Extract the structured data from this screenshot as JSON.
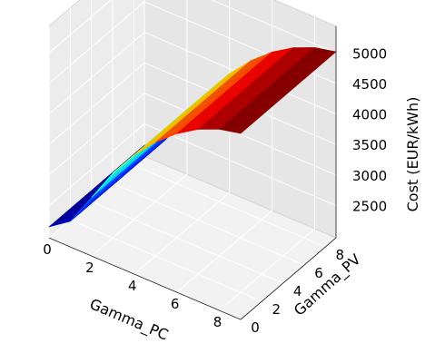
{
  "chart_data": {
    "type": "surface3d",
    "colormap": "jet",
    "grid": true,
    "x": [
      0,
      1,
      2,
      3,
      4,
      5,
      6,
      7,
      8,
      9
    ],
    "y": [
      0,
      1,
      2,
      3,
      4,
      5,
      6,
      7,
      8,
      9
    ],
    "z_profile_over_x": [
      2150,
      2390,
      2930,
      3480,
      3920,
      4280,
      4570,
      4790,
      4940,
      5020
    ],
    "x_ticks": [
      "0",
      "2",
      "4",
      "6",
      "8"
    ],
    "y_ticks": [
      "0",
      "2",
      "4",
      "6",
      "8"
    ],
    "z_ticks": [
      "2500",
      "3000",
      "3500",
      "4000",
      "4500",
      "5000"
    ],
    "xlabel": "Gamma_PC",
    "ylabel": "Gamma_PV",
    "zlabel": "Cost (EUR/kWh)",
    "xlim": [
      0,
      9
    ],
    "ylim": [
      0,
      9
    ],
    "zlim": [
      2150,
      5020
    ]
  }
}
